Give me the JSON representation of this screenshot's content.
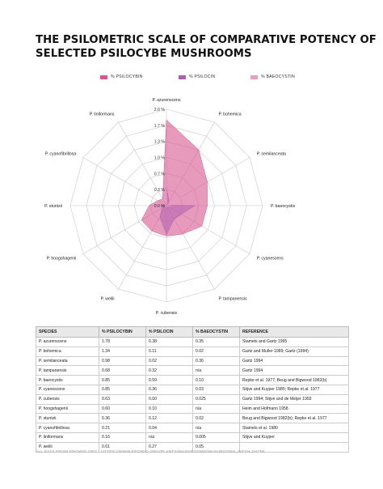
{
  "title_lines": [
    "THE PSILOMETRIC SCALE OF COMPARATIVE POTENCY OF",
    "SELECTED PSILOCYBE MUSHROOMS"
  ],
  "colors": {
    "psilocybin": "#d9568f",
    "psilocin": "#b060b0",
    "baeocystin": "#e8a0c0",
    "grid": "#c8c8c8"
  },
  "chart_data": {
    "type": "radar",
    "title": "THE PSILOMETRIC SCALE OF COMPARATIVE POTENCY OF SELECTED PSILOCYBE MUSHROOMS",
    "categories": [
      "P. azurenscens",
      "P. bohemica",
      "P. semilanceata",
      "P. baeocystis",
      "P. cyanescens",
      "P. tampanensis",
      "P. cubensis",
      "P. weilii",
      "P. hoogshagenii",
      "P. stuntzii",
      "P. cyanofibrillosa",
      "P. liniformans"
    ],
    "series": [
      {
        "name": "% PSILOCYBIN",
        "values": [
          1.78,
          1.34,
          0.98,
          0.85,
          0.85,
          0.68,
          0.63,
          0.61,
          0.6,
          0.36,
          0.21,
          0.16
        ]
      },
      {
        "name": "% PSILOCIN",
        "values": [
          0.38,
          0.11,
          0.02,
          0.59,
          0.36,
          0.32,
          0.6,
          0.27,
          0.1,
          0.12,
          0.04,
          null
        ]
      },
      {
        "name": "% BAEOCYSTIN",
        "values": [
          0.35,
          0.02,
          0.36,
          0.1,
          0.03,
          null,
          0.025,
          0.05,
          null,
          0.02,
          null,
          0.005
        ]
      }
    ],
    "radial_ticks": [
      "0.0 %",
      "0.3 %",
      "0.7 %",
      "1.0 %",
      "1.3 %",
      "1.7 %",
      "2.0 %"
    ],
    "rlim": [
      0,
      2.0
    ],
    "legend_position": "top"
  },
  "table": {
    "headers": [
      "SPECIES",
      "% PSILOCYBIN",
      "% PSILOCIN",
      "% BAEOCYSTIN",
      "REFERENCE"
    ],
    "rows": [
      [
        "P. azurenscens",
        "1.78",
        "0.38",
        "0.35",
        "Stamets and Gartz 1995"
      ],
      [
        "P. bohemica",
        "1.34",
        "0.11",
        "0.02",
        "Gartz and Muller 1989; Gartz (1994)"
      ],
      [
        "P. semilanceata",
        "0.98",
        "0.02",
        "0.36",
        "Gartz 1994"
      ],
      [
        "P. tampanensis",
        "0.68",
        "0.32",
        "n/a",
        "Gartz 1994"
      ],
      [
        "P. baeocystis",
        "0.85",
        "0.59",
        "0.10",
        "Repke et al. 1977; Beug and Bigwood 1982(b)"
      ],
      [
        "P. cyanescens",
        "0.85",
        "0.36",
        "0.03",
        "Stijve and Kuyper 1985; Repke et al. 1977"
      ],
      [
        "P. cubensis",
        "0.63",
        "0.60",
        "0.025",
        "Gartz 1994; Stijve and de Meijer 1993"
      ],
      [
        "P. hoogshagenii",
        "0.60",
        "0.10",
        "n/a",
        "Heim and Hofmann 1958"
      ],
      [
        "P. stuntzii",
        "0.36",
        "0.12",
        "0.02",
        "Beug and Bigwood 1982(b); Repke et al. 1977"
      ],
      [
        "P. cyanofibrillosa",
        "0.21",
        "0.04",
        "n/a",
        "Stamets et al. 1980"
      ],
      [
        "P. liniformans",
        "0.16",
        "n/a",
        "0.005",
        "Stijve and Kuyper"
      ],
      [
        "P. weilii",
        "0.61",
        "0.27",
        "0.05",
        ""
      ]
    ]
  },
  "source": "ALL DATA FROM EROWID.ORG : HTTPS://WWW.EROWID.ORG/PLANTS/MUSHROOMS/MUSHROOMS_INFO4.SHTML"
}
